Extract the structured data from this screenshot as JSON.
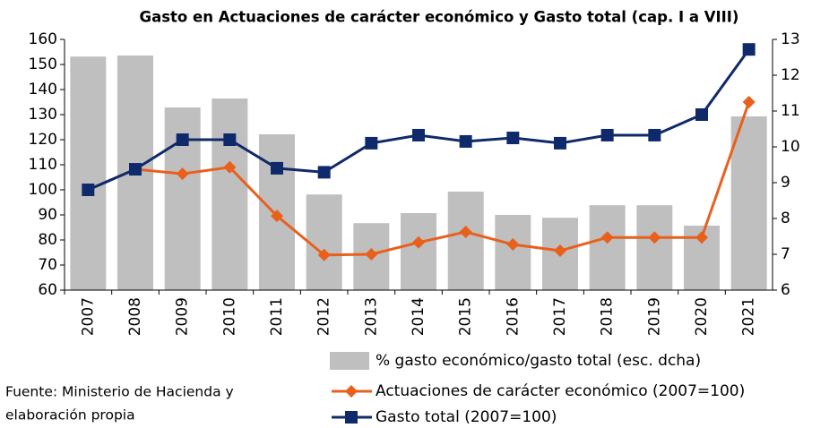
{
  "chart_data": {
    "type": "bar_line",
    "title": "Gasto en Actuaciones de carácter económico y Gasto total (cap. I a VIII)",
    "categories": [
      "2007",
      "2008",
      "2009",
      "2010",
      "2011",
      "2012",
      "2013",
      "2014",
      "2015",
      "2016",
      "2017",
      "2018",
      "2019",
      "2020",
      "2021"
    ],
    "series": [
      {
        "name": "% gasto económico/gasto total (esc. dcha)",
        "type": "bar",
        "axis": "y2",
        "color": "#bfbfbf",
        "values": [
          12.52,
          12.55,
          11.1,
          11.35,
          10.35,
          8.67,
          7.87,
          8.15,
          8.75,
          8.1,
          8.02,
          8.37,
          8.37,
          7.8,
          10.85
        ]
      },
      {
        "name": "Actuaciones de carácter económico (2007=100)",
        "type": "line",
        "color": "#e8601c",
        "marker": "diamond",
        "values": [
          100,
          108.2,
          106.4,
          109,
          89.6,
          74,
          74.3,
          79,
          83.2,
          78.2,
          75.7,
          81,
          81,
          81,
          135
        ]
      },
      {
        "name": "Gasto total (2007=100)",
        "type": "line",
        "color": "#0f2a6b",
        "marker": "square",
        "values": [
          100,
          108.2,
          120,
          120,
          108.6,
          107,
          118.6,
          121.8,
          119.3,
          120.7,
          118.6,
          121.8,
          121.8,
          130,
          156
        ]
      }
    ],
    "ylim": [
      60,
      160
    ],
    "yticks": [
      60,
      70,
      80,
      90,
      100,
      110,
      120,
      130,
      140,
      150,
      160
    ],
    "y2lim": [
      6,
      13
    ],
    "y2ticks": [
      6,
      7,
      8,
      9,
      10,
      11,
      12,
      13
    ],
    "source": [
      "Fuente: Ministerio de Hacienda y",
      "elaboración propia"
    ]
  }
}
